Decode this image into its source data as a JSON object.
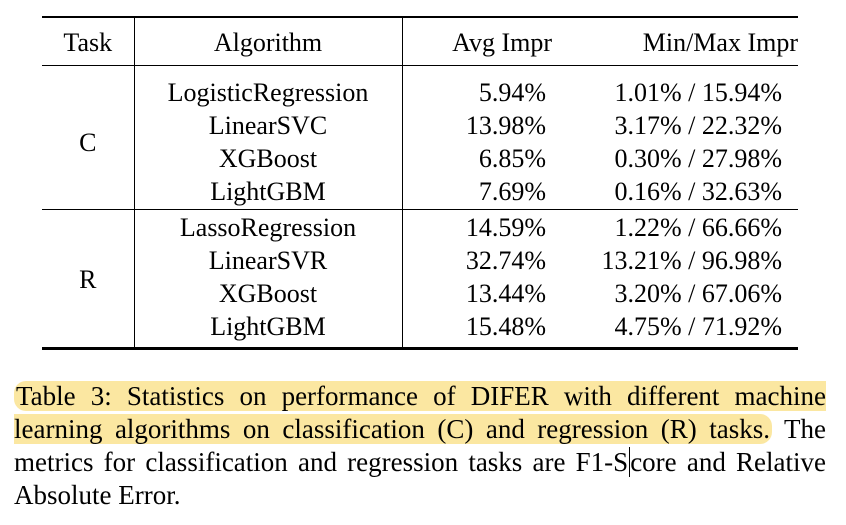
{
  "table": {
    "headers": {
      "task": "Task",
      "algorithm": "Algorithm",
      "avg_impr": "Avg Impr",
      "minmax_impr": "Min/Max Impr"
    },
    "groups": [
      {
        "task": "C",
        "rows": [
          {
            "algorithm": "LogisticRegression",
            "avg": "5.94%",
            "minmax": "1.01% / 15.94%"
          },
          {
            "algorithm": "LinearSVC",
            "avg": "13.98%",
            "minmax": "3.17% / 22.32%"
          },
          {
            "algorithm": "XGBoost",
            "avg": "6.85%",
            "minmax": "0.30% / 27.98%"
          },
          {
            "algorithm": "LightGBM",
            "avg": "7.69%",
            "minmax": "0.16% / 32.63%"
          }
        ]
      },
      {
        "task": "R",
        "rows": [
          {
            "algorithm": "LassoRegression",
            "avg": "14.59%",
            "minmax": "1.22% / 66.66%"
          },
          {
            "algorithm": "LinearSVR",
            "avg": "32.74%",
            "minmax": "13.21% / 96.98%"
          },
          {
            "algorithm": "XGBoost",
            "avg": "13.44%",
            "minmax": "3.20% / 67.06%"
          },
          {
            "algorithm": "LightGBM",
            "avg": "15.48%",
            "minmax": "4.75% / 71.92%"
          }
        ]
      }
    ]
  },
  "caption": {
    "highlighted": "Table 3: Statistics on performance of DIFER with different machine learning algorithms on classification (C) and regression (R) tasks.",
    "rest_before_cursor": "The metrics for classification and regression tasks are F1-S",
    "rest_after_cursor": "core and Relative Absolute Error.",
    "highlight_color": "#fbe7a1"
  }
}
